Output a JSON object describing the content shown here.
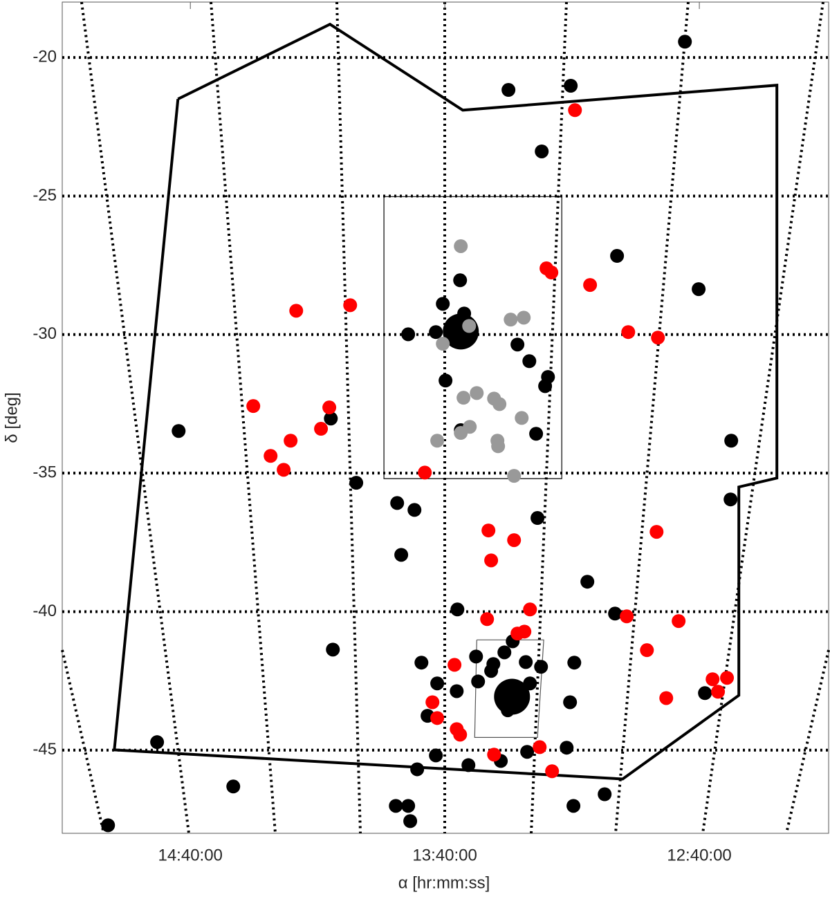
{
  "chart_data": {
    "type": "scatter",
    "xlabel": "α [hr:mm:ss]",
    "ylabel": "δ [deg]",
    "xlim": [
      227.55,
      182.38
    ],
    "ylim": [
      -48,
      -18
    ],
    "xticks": [
      {
        "value": 220,
        "label": "14:40:00"
      },
      {
        "value": 205,
        "label": "13:40:00"
      },
      {
        "value": 190,
        "label": "12:40:00"
      }
    ],
    "yticks": [
      -20,
      -25,
      -30,
      -35,
      -40,
      -45
    ],
    "grid": true,
    "outlines": [
      {
        "color": "#000000",
        "line_style": "thick",
        "x": [
          220.73,
          211.77,
          203.94,
          185.43,
          185.43,
          187.67,
          187.67,
          194.52,
          224.48,
          220.73
        ],
        "y": [
          -21.5,
          -18.8,
          -21.9,
          -21.0,
          -35.18,
          -35.5,
          -43.02,
          -46.04,
          -44.99,
          -21.5
        ]
      },
      {
        "color": "#000000",
        "line_style": "thin",
        "x": [
          208.59,
          198.11,
          198.11,
          208.59,
          208.59
        ],
        "y": [
          -25.02,
          -25.02,
          -35.2,
          -35.2,
          -25.02
        ]
      },
      {
        "color": "#555555",
        "line_style": "thin",
        "x": [
          203.12,
          199.17,
          199.54,
          203.24,
          203.12
        ],
        "y": [
          -41.02,
          -41.02,
          -44.54,
          -44.54,
          -41.02
        ]
      }
    ],
    "series": [
      {
        "color": "#000000",
        "marker": "normal",
        "x": [
          190.85,
          201.25,
          197.58,
          199.29,
          194.85,
          190.04,
          204.1,
          205.12,
          203.86,
          207.16,
          205.53,
          200.72,
          200.02,
          198.92,
          199.09,
          204.96,
          204.06,
          199.62,
          211.72,
          220.69,
          210.22,
          188.12,
          188.16,
          207.81,
          206.79,
          207.57,
          199.54,
          196.6,
          204.26,
          194.97,
          211.6,
          206.38,
          203.16,
          202.14,
          202.27,
          201.49,
          201.0,
          200.23,
          199.33,
          197.37,
          205.45,
          204.3,
          203.04,
          199.98,
          206.02,
          201.29,
          197.62,
          189.67,
          221.96,
          205.53,
          203.61,
          201.7,
          206.63,
          200.15,
          197.82,
          217.47,
          207.89,
          207.16,
          207.04,
          197.42,
          195.58,
          224.85
        ],
        "y": [
          -19.43,
          -21.17,
          -21.02,
          -23.39,
          -27.16,
          -28.36,
          -28.04,
          -28.89,
          -29.24,
          -29.99,
          -29.91,
          -30.36,
          -30.96,
          -31.53,
          -31.86,
          -31.66,
          -33.45,
          -33.58,
          -33.03,
          -33.48,
          -35.35,
          -33.83,
          -35.95,
          -36.08,
          -36.33,
          -37.95,
          -36.62,
          -38.92,
          -39.92,
          -40.07,
          -41.37,
          -41.84,
          -41.62,
          -41.89,
          -42.14,
          -41.47,
          -41.07,
          -41.82,
          -41.99,
          -41.84,
          -42.59,
          -42.87,
          -42.52,
          -42.59,
          -43.76,
          -43.56,
          -43.27,
          -42.94,
          -44.71,
          -45.19,
          -45.54,
          -45.39,
          -45.69,
          -45.06,
          -44.91,
          -46.31,
          -47.01,
          -47.01,
          -47.56,
          -47.01,
          -46.59,
          -47.71
        ]
      },
      {
        "color": "#000000",
        "marker": "large",
        "x": [
          204.06,
          201.04
        ],
        "y": [
          -29.89,
          -43.07
        ]
      },
      {
        "color": "#ff0000",
        "marker": "normal",
        "x": [
          197.33,
          199.01,
          198.72,
          196.44,
          210.58,
          213.76,
          194.19,
          192.44,
          216.29,
          211.81,
          212.3,
          214.09,
          215.27,
          214.5,
          206.18,
          202.43,
          200.92,
          202.27,
          192.52,
          199.98,
          202.51,
          200.72,
          200.31,
          194.28,
          191.22,
          193.09,
          204.43,
          205.73,
          205.45,
          204.3,
          204.1,
          189.22,
          188.37,
          188.9,
          191.95,
          199.41,
          202.1,
          198.68
        ],
        "y": [
          -21.9,
          -27.61,
          -27.76,
          -28.21,
          -28.94,
          -29.14,
          -29.91,
          -30.11,
          -32.58,
          -32.63,
          -33.4,
          -33.83,
          -34.38,
          -34.88,
          -34.98,
          -37.07,
          -37.42,
          -38.15,
          -37.12,
          -39.92,
          -40.27,
          -40.79,
          -40.72,
          -40.17,
          -40.34,
          -41.39,
          -41.92,
          -43.27,
          -43.84,
          -44.24,
          -44.44,
          -42.44,
          -42.39,
          -42.89,
          -43.12,
          -44.89,
          -45.16,
          -45.76
        ]
      },
      {
        "color": "#999999",
        "marker": "normal",
        "x": [
          204.06,
          203.57,
          205.12,
          201.12,
          200.35,
          203.9,
          203.12,
          202.1,
          201.78,
          200.47,
          203.53,
          204.06,
          205.45,
          201.9,
          201.86,
          200.92
        ],
        "y": [
          -26.81,
          -29.69,
          -30.33,
          -29.46,
          -29.39,
          -32.28,
          -32.11,
          -32.31,
          -32.51,
          -33.01,
          -33.33,
          -33.55,
          -33.83,
          -33.83,
          -34.03,
          -35.1
        ]
      }
    ]
  }
}
